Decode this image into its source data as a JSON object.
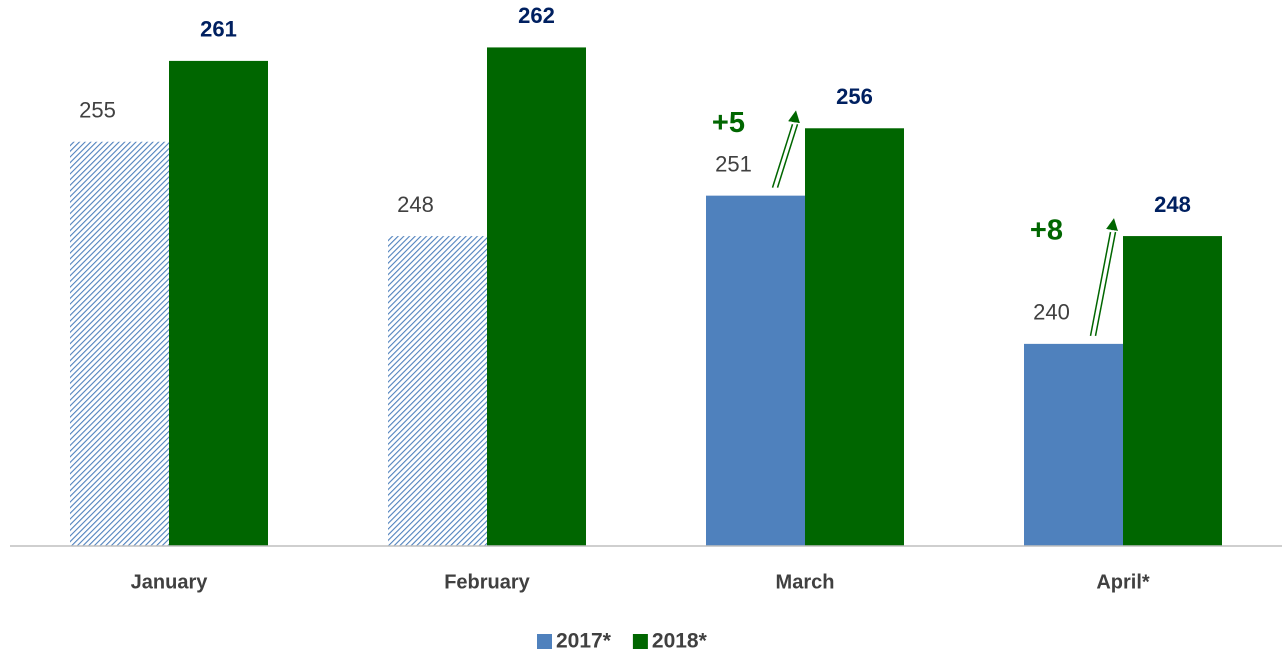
{
  "chart_data": {
    "type": "bar",
    "categories": [
      "January",
      "February",
      "March",
      "April*"
    ],
    "series": [
      {
        "name": "2017*",
        "color": "#4f81bd",
        "values": [
          255,
          248,
          251,
          240
        ],
        "hatched": [
          true,
          true,
          false,
          false
        ]
      },
      {
        "name": "2018*",
        "color": "#006600",
        "values": [
          261,
          262,
          256,
          248
        ]
      }
    ],
    "ylim": [
      225,
      265
    ],
    "annotations": [
      {
        "text": "+5",
        "category": "March"
      },
      {
        "text": "+8",
        "category": "April*"
      }
    ],
    "legend": "bottom"
  }
}
